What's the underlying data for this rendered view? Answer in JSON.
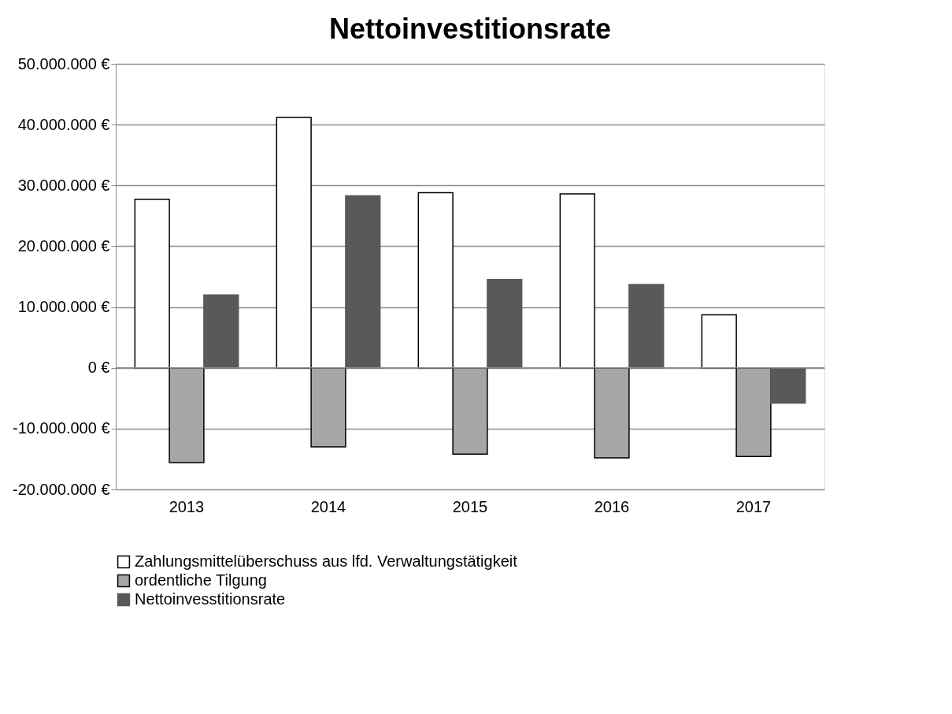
{
  "chart_data": {
    "type": "bar",
    "title": "Nettoinvestitionsrate",
    "categories": [
      "2013",
      "2014",
      "2015",
      "2016",
      "2017"
    ],
    "series": [
      {
        "name": "Zahlungsmittelüberschuss aus lfd. Verwaltungstätigkeit",
        "color": "#ffffff",
        "values": [
          27700000,
          41200000,
          28800000,
          28600000,
          8700000
        ]
      },
      {
        "name": "ordentliche Tilgung",
        "color": "#a6a6a6",
        "values": [
          -15600000,
          -13000000,
          -14200000,
          -14800000,
          -14600000
        ]
      },
      {
        "name": "Nettoinvesstitionsrate",
        "color": "#595959",
        "values": [
          12000000,
          28300000,
          14500000,
          13700000,
          -5800000
        ]
      }
    ],
    "ylim": [
      -20000000,
      50000000
    ],
    "yticks": [
      {
        "value": -20000000,
        "label": "-20.000.000 €"
      },
      {
        "value": -10000000,
        "label": "-10.000.000 €"
      },
      {
        "value": 0,
        "label": "0 €"
      },
      {
        "value": 10000000,
        "label": "10.000.000 €"
      },
      {
        "value": 20000000,
        "label": "20.000.000 €"
      },
      {
        "value": 30000000,
        "label": "30.000.000 €"
      },
      {
        "value": 40000000,
        "label": "40.000.000 €"
      },
      {
        "value": 50000000,
        "label": "50.000.000 €"
      }
    ],
    "grid": "y",
    "legend": "bottom"
  }
}
